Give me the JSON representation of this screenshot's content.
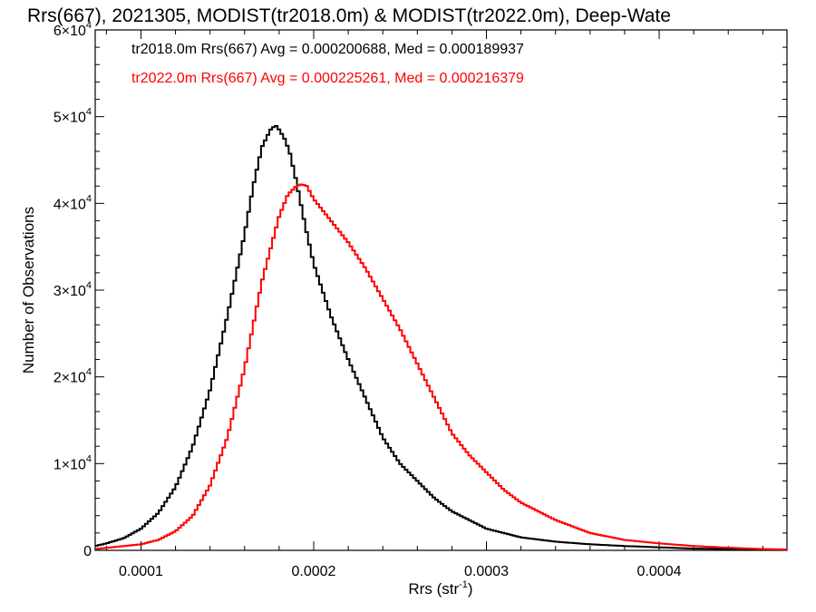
{
  "chart_data": {
    "type": "histogram",
    "title": "Rrs(667), 2021305, MODIST(tr2018.0m) & MODIST(tr2022.0m), Deep-Wate",
    "xlabel_main": "Rrs (str",
    "xlabel_sup": "-1",
    "xlabel_close": ")",
    "ylabel": "Number of Observations",
    "xlim": [
      7.35e-05,
      0.000474
    ],
    "ylim": [
      0,
      60000
    ],
    "x_ticks": [
      {
        "value": 0.0001,
        "label": "0.0001"
      },
      {
        "value": 0.0002,
        "label": "0.0002"
      },
      {
        "value": 0.0003,
        "label": "0.0003"
      },
      {
        "value": 0.0004,
        "label": "0.0004"
      }
    ],
    "y_ticks": [
      {
        "value": 0,
        "label": "0",
        "exp": ""
      },
      {
        "value": 10000,
        "label": "1×10",
        "exp": "4"
      },
      {
        "value": 20000,
        "label": "2×10",
        "exp": "4"
      },
      {
        "value": 30000,
        "label": "3×10",
        "exp": "4"
      },
      {
        "value": 40000,
        "label": "4×10",
        "exp": "4"
      },
      {
        "value": 50000,
        "label": "5×10",
        "exp": "4"
      },
      {
        "value": 60000,
        "label": "6×10",
        "exp": "4"
      }
    ],
    "legend": [
      {
        "text": "tr2018.0m Rrs(667) Avg = 0.000200688, Med = 0.000189937",
        "color": "#000000"
      },
      {
        "text": "tr2022.0m Rrs(667) Avg = 0.000225261, Med = 0.000216379",
        "color": "#ff0000"
      }
    ],
    "series": [
      {
        "color": "#000000",
        "x": [
          7.35e-05,
          8e-05,
          9e-05,
          0.0001,
          0.00011,
          0.00012,
          0.00013,
          0.00014,
          0.00015,
          0.00016,
          0.000165,
          0.00017,
          0.000175,
          0.000178,
          0.00018,
          0.000183,
          0.000186,
          0.00019,
          0.000195,
          0.0002,
          0.00021,
          0.00022,
          0.00023,
          0.00024,
          0.00025,
          0.00026,
          0.00027,
          0.00028,
          0.00029,
          0.0003,
          0.00032,
          0.00034,
          0.00036,
          0.00038,
          0.0004,
          0.00042,
          0.00044,
          0.00046,
          0.000474
        ],
        "y": [
          500,
          800,
          1400,
          2500,
          4300,
          7300,
          12000,
          18500,
          27000,
          36500,
          42000,
          46500,
          48500,
          49000,
          48500,
          47500,
          46000,
          42500,
          37500,
          33000,
          27000,
          22000,
          17500,
          13000,
          10000,
          8000,
          6000,
          4500,
          3500,
          2500,
          1500,
          1000,
          700,
          500,
          350,
          200,
          150,
          100,
          80
        ]
      },
      {
        "color": "#ff0000",
        "x": [
          7.35e-05,
          0.0001,
          0.00011,
          0.00012,
          0.00013,
          0.00014,
          0.00015,
          0.00016,
          0.00017,
          0.00018,
          0.000185,
          0.00019,
          0.000193,
          0.000196,
          0.0002,
          0.00021,
          0.00022,
          0.00023,
          0.00024,
          0.00025,
          0.00026,
          0.00027,
          0.00028,
          0.00029,
          0.0003,
          0.00031,
          0.00032,
          0.00034,
          0.00036,
          0.00038,
          0.0004,
          0.00042,
          0.00044,
          0.00046,
          0.000474
        ],
        "y": [
          150,
          700,
          1200,
          2200,
          4000,
          7500,
          13000,
          21000,
          31000,
          38500,
          41000,
          42000,
          42200,
          42000,
          40500,
          38000,
          35500,
          32500,
          29000,
          25500,
          21500,
          17500,
          13500,
          11000,
          9000,
          7000,
          5500,
          3500,
          2000,
          1200,
          800,
          500,
          300,
          150,
          100
        ]
      }
    ]
  }
}
